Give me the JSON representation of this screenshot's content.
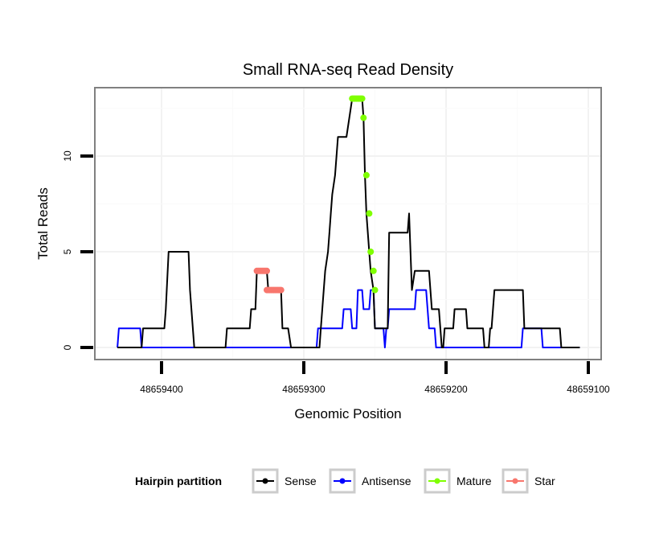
{
  "chart_data": {
    "type": "line",
    "title": "Small RNA-seq Read Density",
    "xlabel": "Genomic Position",
    "ylabel": "Total Reads",
    "x_reversed": true,
    "xlim": [
      48659431,
      48659090
    ],
    "ylim": [
      -0.6,
      13.3
    ],
    "x_ticks": [
      48659400,
      48659300,
      48659200,
      48659100
    ],
    "x_tick_labels": [
      "48659400",
      "48659300",
      "48659200",
      "48659100"
    ],
    "y_ticks": [
      0,
      5,
      10
    ],
    "y_tick_labels": [
      "0",
      "5",
      "10"
    ],
    "grid": true,
    "legend": {
      "title": "Hairpin partition",
      "position": "bottom",
      "entries": [
        {
          "label": "Sense",
          "color": "#000000"
        },
        {
          "label": "Antisense",
          "color": "#0000ff"
        },
        {
          "label": "Mature",
          "color": "#7fff00"
        },
        {
          "label": "Star",
          "color": "#f8766d"
        }
      ]
    },
    "series": [
      {
        "name": "Sense",
        "color": "#000000",
        "kind": "line",
        "points": [
          [
            48659431,
            0
          ],
          [
            48659414,
            0
          ],
          [
            48659413,
            1
          ],
          [
            48659398,
            1
          ],
          [
            48659397,
            2
          ],
          [
            48659395,
            5
          ],
          [
            48659381,
            5
          ],
          [
            48659380,
            3
          ],
          [
            48659377,
            0
          ],
          [
            48659355,
            0
          ],
          [
            48659354,
            1
          ],
          [
            48659338,
            1
          ],
          [
            48659337,
            2
          ],
          [
            48659334,
            2
          ],
          [
            48659333,
            4
          ],
          [
            48659326,
            4
          ],
          [
            48659325,
            3
          ],
          [
            48659316,
            3
          ],
          [
            48659315,
            1
          ],
          [
            48659311,
            1
          ],
          [
            48659309,
            0
          ],
          [
            48659289,
            0
          ],
          [
            48659288,
            1
          ],
          [
            48659287,
            2
          ],
          [
            48659286,
            3
          ],
          [
            48659285,
            4
          ],
          [
            48659283,
            5
          ],
          [
            48659282,
            6
          ],
          [
            48659281,
            7
          ],
          [
            48659280,
            8
          ],
          [
            48659278,
            9
          ],
          [
            48659277,
            10
          ],
          [
            48659276,
            11
          ],
          [
            48659270,
            11
          ],
          [
            48659266,
            13
          ],
          [
            48659259,
            13
          ],
          [
            48659258,
            12
          ],
          [
            48659257,
            9
          ],
          [
            48659256,
            7
          ],
          [
            48659254,
            5
          ],
          [
            48659253,
            4
          ],
          [
            48659251,
            3
          ],
          [
            48659250,
            1
          ],
          [
            48659241,
            1
          ],
          [
            48659240,
            6
          ],
          [
            48659227,
            6
          ],
          [
            48659226,
            7
          ],
          [
            48659224,
            3
          ],
          [
            48659222,
            4
          ],
          [
            48659212,
            4
          ],
          [
            48659210,
            2
          ],
          [
            48659205,
            2
          ],
          [
            48659204,
            1
          ],
          [
            48659203,
            0
          ],
          [
            48659202,
            0
          ],
          [
            48659201,
            1
          ],
          [
            48659195,
            1
          ],
          [
            48659194,
            2
          ],
          [
            48659186,
            2
          ],
          [
            48659185,
            1
          ],
          [
            48659174,
            1
          ],
          [
            48659173,
            0
          ],
          [
            48659170,
            0
          ],
          [
            48659169,
            1
          ],
          [
            48659168,
            1
          ],
          [
            48659166,
            3
          ],
          [
            48659146,
            3
          ],
          [
            48659145,
            1
          ],
          [
            48659120,
            1
          ],
          [
            48659119,
            0
          ],
          [
            48659106,
            0
          ]
        ]
      },
      {
        "name": "Antisense",
        "color": "#0000ff",
        "kind": "line",
        "points": [
          [
            48659431,
            0
          ],
          [
            48659430,
            1
          ],
          [
            48659415,
            1
          ],
          [
            48659414,
            0
          ],
          [
            48659291,
            0
          ],
          [
            48659290,
            1
          ],
          [
            48659273,
            1
          ],
          [
            48659272,
            2
          ],
          [
            48659267,
            2
          ],
          [
            48659266,
            1
          ],
          [
            48659263,
            1
          ],
          [
            48659262,
            3
          ],
          [
            48659259,
            3
          ],
          [
            48659258,
            2
          ],
          [
            48659254,
            2
          ],
          [
            48659253,
            3
          ],
          [
            48659251,
            3
          ],
          [
            48659250,
            1
          ],
          [
            48659244,
            1
          ],
          [
            48659243,
            0
          ],
          [
            48659242,
            1
          ],
          [
            48659241,
            1
          ],
          [
            48659240,
            2
          ],
          [
            48659222,
            2
          ],
          [
            48659221,
            3
          ],
          [
            48659214,
            3
          ],
          [
            48659212,
            1
          ],
          [
            48659208,
            1
          ],
          [
            48659207,
            0
          ],
          [
            48659173,
            0
          ],
          [
            48659172,
            0
          ],
          [
            48659147,
            0
          ],
          [
            48659146,
            1
          ],
          [
            48659133,
            1
          ],
          [
            48659132,
            0
          ],
          [
            48659106,
            0
          ]
        ]
      },
      {
        "name": "Mature",
        "color": "#7fff00",
        "kind": "points",
        "points": [
          [
            48659266,
            13
          ],
          [
            48659265,
            13
          ],
          [
            48659264,
            13
          ],
          [
            48659263,
            13
          ],
          [
            48659262,
            13
          ],
          [
            48659261,
            13
          ],
          [
            48659260,
            13
          ],
          [
            48659259,
            13
          ],
          [
            48659258,
            12
          ],
          [
            48659256,
            9
          ],
          [
            48659254,
            7
          ],
          [
            48659253,
            5
          ],
          [
            48659251,
            4
          ],
          [
            48659250,
            3
          ]
        ]
      },
      {
        "name": "Star",
        "color": "#f8766d",
        "kind": "points",
        "points": [
          [
            48659333,
            4
          ],
          [
            48659332,
            4
          ],
          [
            48659331,
            4
          ],
          [
            48659330,
            4
          ],
          [
            48659329,
            4
          ],
          [
            48659328,
            4
          ],
          [
            48659327,
            4
          ],
          [
            48659326,
            4
          ],
          [
            48659326,
            3
          ],
          [
            48659325,
            3
          ],
          [
            48659324,
            3
          ],
          [
            48659323,
            3
          ],
          [
            48659322,
            3
          ],
          [
            48659321,
            3
          ],
          [
            48659320,
            3
          ],
          [
            48659319,
            3
          ],
          [
            48659318,
            3
          ],
          [
            48659317,
            3
          ],
          [
            48659316,
            3
          ]
        ]
      }
    ]
  }
}
